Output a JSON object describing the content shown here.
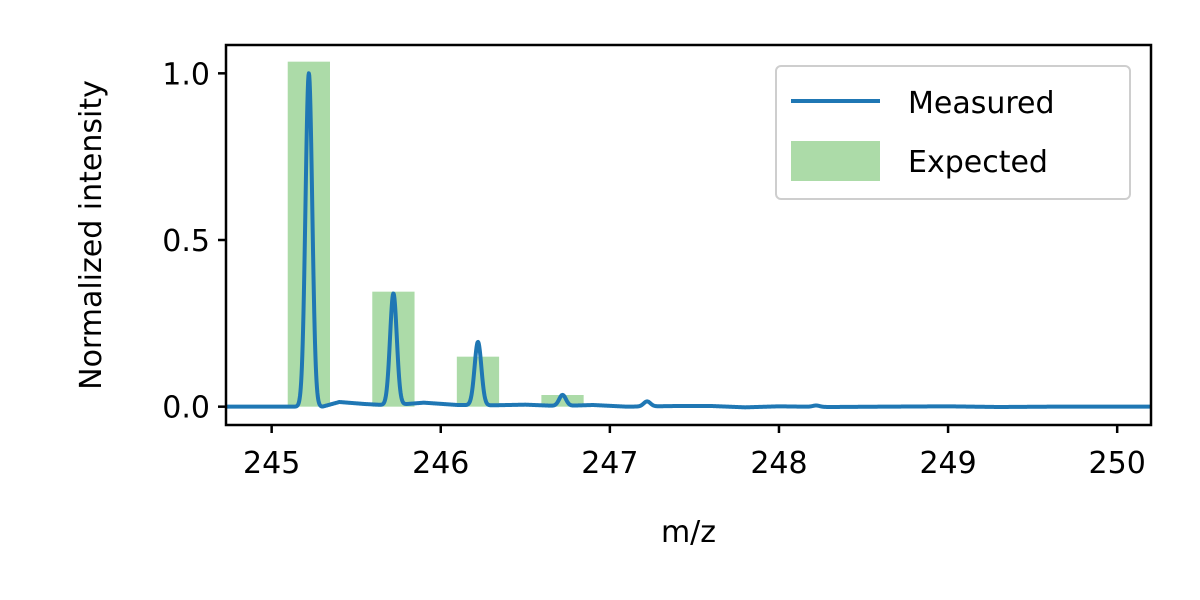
{
  "chart_data": {
    "type": "line",
    "title": "",
    "xlabel": "m/z",
    "ylabel": "Normalized intensity",
    "xlim": [
      244.73,
      250.2
    ],
    "ylim": [
      -0.055,
      1.085
    ],
    "xticks": [
      245,
      246,
      247,
      248,
      249,
      250
    ],
    "xtick_labels": [
      "245",
      "246",
      "247",
      "248",
      "249",
      "250"
    ],
    "yticks": [
      0.0,
      0.5,
      1.0
    ],
    "ytick_labels": [
      "0.0",
      "0.5",
      "1.0"
    ],
    "grid": false,
    "legend": {
      "position": "top-right",
      "entries": [
        "Measured",
        "Expected"
      ]
    },
    "expected": {
      "name": "Expected",
      "color": "#acdba8",
      "bar_width": 0.25,
      "x": [
        245.22,
        245.72,
        246.22,
        246.72
      ],
      "values": [
        1.035,
        0.345,
        0.15,
        0.035
      ]
    },
    "measured": {
      "name": "Measured",
      "color": "#1f77b4",
      "peak_width": 0.02,
      "baseline": [
        [
          244.73,
          0.0
        ],
        [
          245.1,
          0.0
        ],
        [
          245.3,
          0.0
        ],
        [
          245.4,
          0.014
        ],
        [
          245.55,
          0.008
        ],
        [
          245.7,
          0.004
        ],
        [
          245.9,
          0.012
        ],
        [
          246.1,
          0.005
        ],
        [
          246.3,
          0.004
        ],
        [
          246.5,
          0.006
        ],
        [
          246.7,
          0.002
        ],
        [
          246.9,
          0.005
        ],
        [
          247.1,
          0.0
        ],
        [
          247.4,
          0.002
        ],
        [
          247.6,
          0.002
        ],
        [
          247.8,
          -0.002
        ],
        [
          248.0,
          0.001
        ],
        [
          248.3,
          -0.001
        ],
        [
          248.6,
          0.0
        ],
        [
          249.0,
          0.001
        ],
        [
          249.3,
          -0.001
        ],
        [
          249.6,
          0.0
        ],
        [
          250.2,
          0.0
        ]
      ],
      "peaks": [
        {
          "x": 245.22,
          "height": 1.0
        },
        {
          "x": 245.72,
          "height": 0.335
        },
        {
          "x": 246.22,
          "height": 0.19
        },
        {
          "x": 246.72,
          "height": 0.033
        },
        {
          "x": 247.22,
          "height": 0.015
        },
        {
          "x": 248.22,
          "height": 0.004
        }
      ]
    }
  }
}
